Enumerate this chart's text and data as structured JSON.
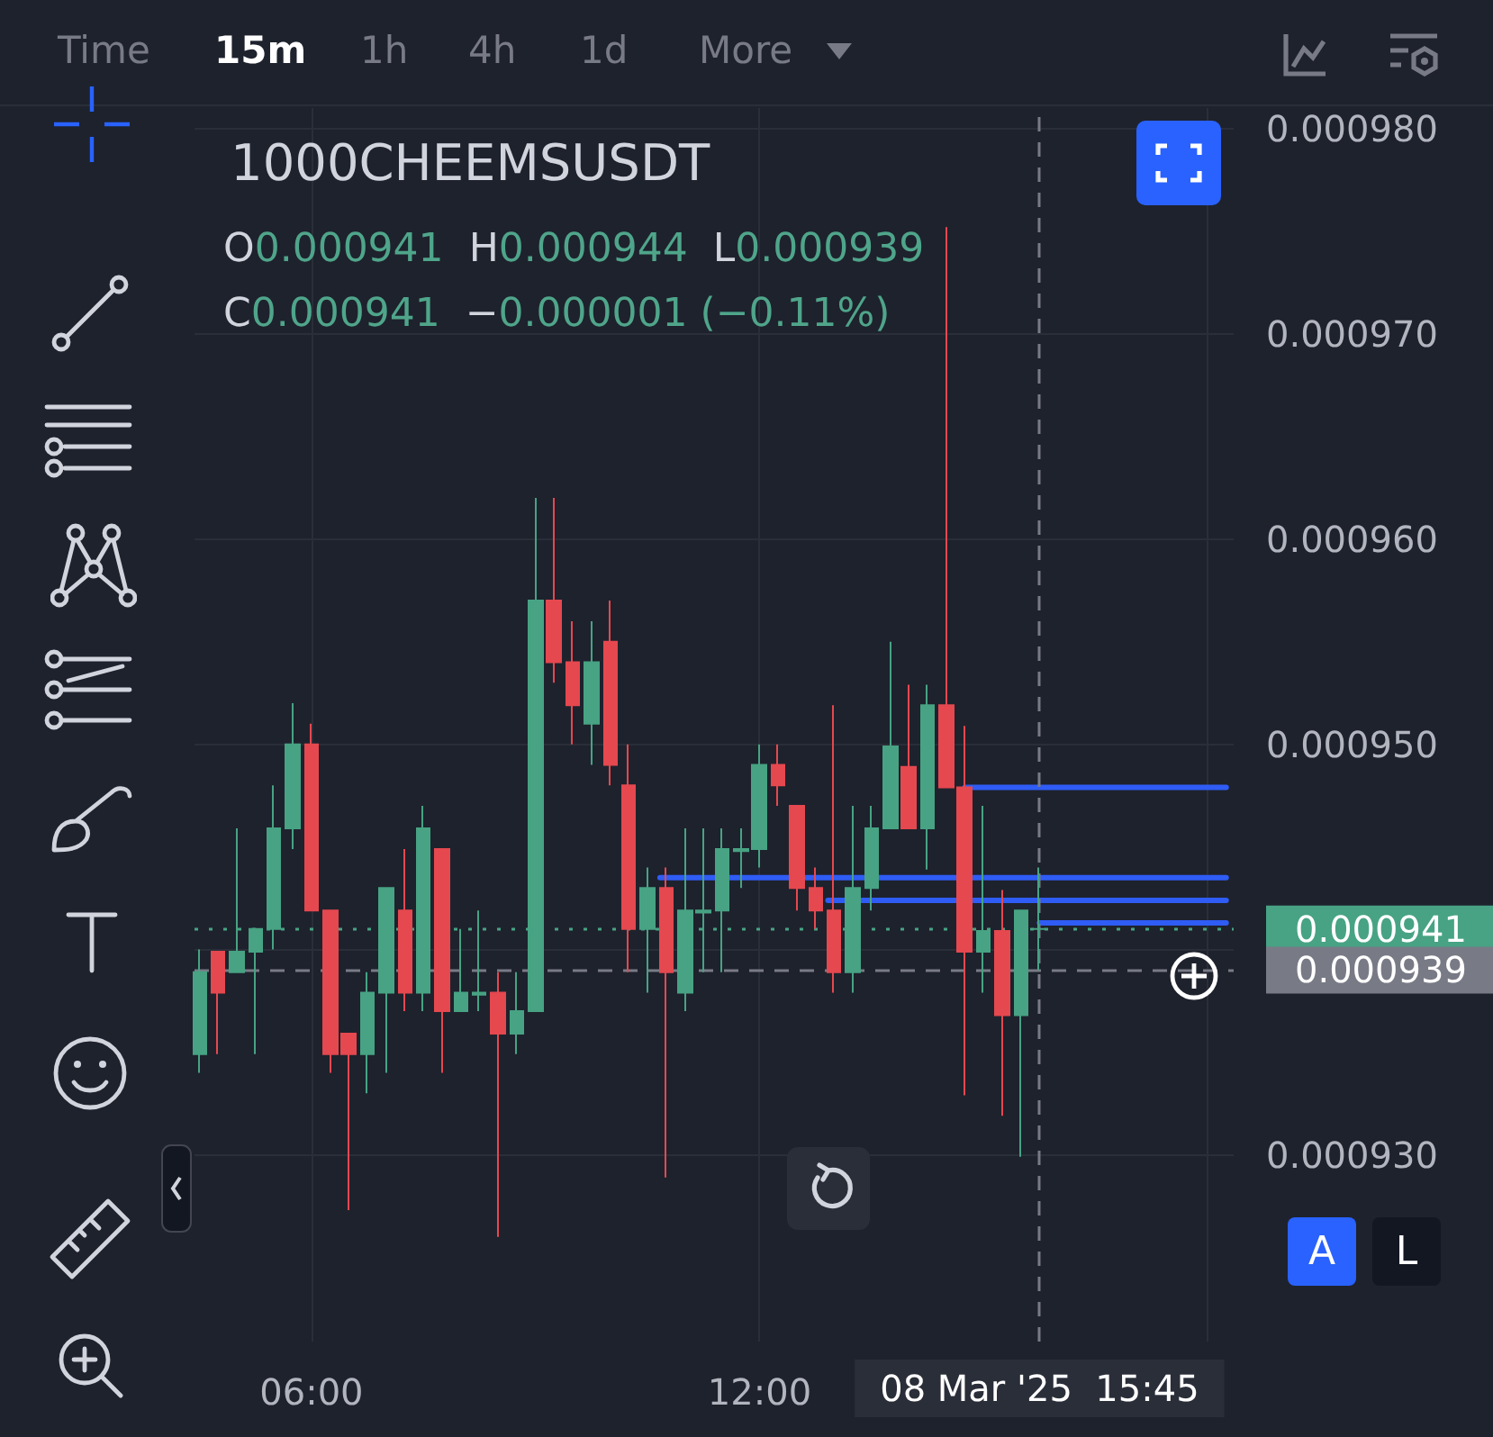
{
  "chart_data": {
    "type": "candlestick",
    "title": "1000CHEEMSUSDT",
    "annotations": [
      "Time",
      "15m",
      "1h",
      "4h",
      "1d",
      "More",
      "O0.000941",
      "H0.000944",
      "L0.000939",
      "C0.000941",
      "−0.000001 (−0.11%)",
      "A",
      "L"
    ],
    "x": [
      "2025-03-08T04:30",
      "2025-03-08T04:45",
      "2025-03-08T05:00",
      "2025-03-08T05:15",
      "2025-03-08T05:30",
      "2025-03-08T05:45",
      "2025-03-08T06:00",
      "2025-03-08T06:15",
      "2025-03-08T06:30",
      "2025-03-08T06:45",
      "2025-03-08T07:00",
      "2025-03-08T07:15",
      "2025-03-08T07:30",
      "2025-03-08T07:45",
      "2025-03-08T08:00",
      "2025-03-08T08:15",
      "2025-03-08T08:30",
      "2025-03-08T08:45",
      "2025-03-08T09:00",
      "2025-03-08T09:15",
      "2025-03-08T09:30",
      "2025-03-08T09:45",
      "2025-03-08T10:00",
      "2025-03-08T10:15",
      "2025-03-08T10:30",
      "2025-03-08T10:45",
      "2025-03-08T11:00",
      "2025-03-08T11:15",
      "2025-03-08T11:30",
      "2025-03-08T11:45",
      "2025-03-08T12:00",
      "2025-03-08T12:15",
      "2025-03-08T12:30",
      "2025-03-08T12:45",
      "2025-03-08T13:00",
      "2025-03-08T13:15",
      "2025-03-08T13:30",
      "2025-03-08T13:45",
      "2025-03-08T14:00",
      "2025-03-08T14:15",
      "2025-03-08T14:30",
      "2025-03-08T14:45",
      "2025-03-08T15:00",
      "2025-03-08T15:15",
      "2025-03-08T15:30",
      "2025-03-08T15:45"
    ],
    "ohlc": [
      [
        0.0009349,
        0.00094,
        0.000934,
        0.0009389
      ],
      [
        0.0009399,
        0.0009399,
        0.0009349,
        0.0009379
      ],
      [
        0.0009389,
        0.0009459,
        0.0009389,
        0.0009399
      ],
      [
        0.0009399,
        0.000941,
        0.0009349,
        0.000941
      ],
      [
        0.000941,
        0.000948,
        0.00094,
        0.0009459
      ],
      [
        0.0009459,
        0.000952,
        0.0009449,
        0.00095
      ],
      [
        0.00095,
        0.000951,
        0.0009419,
        0.0009419
      ],
      [
        0.0009419,
        0.0009419,
        0.000934,
        0.0009349
      ],
      [
        0.0009359,
        0.0009359,
        0.0009273,
        0.0009349
      ],
      [
        0.0009349,
        0.0009389,
        0.000933,
        0.0009379
      ],
      [
        0.0009379,
        0.000943,
        0.000934,
        0.000943
      ],
      [
        0.0009419,
        0.0009449,
        0.000937,
        0.0009379
      ],
      [
        0.0009379,
        0.000947,
        0.000937,
        0.0009459
      ],
      [
        0.0009449,
        0.0009449,
        0.000934,
        0.000937
      ],
      [
        0.000937,
        0.000941,
        0.000937,
        0.0009379
      ],
      [
        0.0009378,
        0.0009419,
        0.000937,
        0.0009379
      ],
      [
        0.0009379,
        0.0009389,
        0.000926,
        0.0009359
      ],
      [
        0.0009359,
        0.0009389,
        0.0009349,
        0.000937
      ],
      [
        0.000937,
        0.000962,
        0.000937,
        0.000957
      ],
      [
        0.000957,
        0.000962,
        0.000953,
        0.000954
      ],
      [
        0.000954,
        0.000956,
        0.00095,
        0.0009519
      ],
      [
        0.000951,
        0.000956,
        0.000949,
        0.000954
      ],
      [
        0.000955,
        0.000957,
        0.000948,
        0.000949
      ],
      [
        0.000948,
        0.00095,
        0.0009389,
        0.000941
      ],
      [
        0.000941,
        0.000944,
        0.0009379,
        0.000943
      ],
      [
        0.000943,
        0.000944,
        0.0009289,
        0.0009389
      ],
      [
        0.0009379,
        0.0009459,
        0.000937,
        0.0009419
      ],
      [
        0.0009418,
        0.0009459,
        0.0009389,
        0.0009419
      ],
      [
        0.0009419,
        0.0009459,
        0.0009389,
        0.0009449
      ],
      [
        0.0009448,
        0.0009459,
        0.000943,
        0.0009449
      ],
      [
        0.0009449,
        0.00095,
        0.000944,
        0.000949
      ],
      [
        0.000949,
        0.00095,
        0.000947,
        0.000948
      ],
      [
        0.000947,
        0.000947,
        0.0009419,
        0.000943
      ],
      [
        0.000943,
        0.000944,
        0.000941,
        0.0009419
      ],
      [
        0.0009419,
        0.0009519,
        0.0009379,
        0.0009389
      ],
      [
        0.0009389,
        0.000947,
        0.0009379,
        0.000943
      ],
      [
        0.000943,
        0.000947,
        0.0009419,
        0.0009459
      ],
      [
        0.0009459,
        0.000955,
        0.0009459,
        0.0009499
      ],
      [
        0.0009489,
        0.0009529,
        0.0009459,
        0.0009459
      ],
      [
        0.0009459,
        0.0009529,
        0.0009439,
        0.0009519
      ],
      [
        0.0009519,
        0.0009752,
        0.0009479,
        0.0009479
      ],
      [
        0.0009479,
        0.0009509,
        0.0009329,
        0.0009399
      ],
      [
        0.0009399,
        0.000947,
        0.0009379,
        0.0009409
      ],
      [
        0.0009409,
        0.0009429,
        0.0009319,
        0.0009368
      ],
      [
        0.0009368,
        0.0009419,
        0.0009299,
        0.0009419
      ],
      [
        0.000941,
        0.000944,
        0.000939,
        0.000941
      ]
    ],
    "colors": [
      "#47a383",
      "#e5484f",
      "#47a383",
      "#47a383",
      "#47a383",
      "#47a383",
      "#e5484f",
      "#e5484f",
      "#e5484f",
      "#47a383",
      "#47a383",
      "#e5484f",
      "#47a383",
      "#e5484f",
      "#47a383",
      "#47a383",
      "#e5484f",
      "#47a383",
      "#47a383",
      "#e5484f",
      "#e5484f",
      "#47a383",
      "#e5484f",
      "#e5484f",
      "#47a383",
      "#e5484f",
      "#47a383",
      "#47a383",
      "#47a383",
      "#47a383",
      "#47a383",
      "#e5484f",
      "#e5484f",
      "#e5484f",
      "#e5484f",
      "#47a383",
      "#47a383",
      "#47a383",
      "#e5484f",
      "#47a383",
      "#e5484f",
      "#e5484f",
      "#47a383",
      "#e5484f",
      "#47a383",
      "#47a383"
    ],
    "series": [
      {
        "type": "line",
        "color": "#2f5cf5",
        "x": [
          "2025-03-08T10:40",
          "2025-03-08T18:15"
        ],
        "values": [
          0.0009435,
          0.0009435
        ]
      },
      {
        "type": "line",
        "color": "#2f5cf5",
        "x": [
          "2025-03-08T12:55",
          "2025-03-08T18:15"
        ],
        "values": [
          0.0009424,
          0.0009424
        ]
      },
      {
        "type": "line",
        "color": "#2f5cf5",
        "x": [
          "2025-03-08T14:45",
          "2025-03-08T18:15"
        ],
        "values": [
          0.0009479,
          0.0009479
        ]
      },
      {
        "type": "line",
        "color": "#2f5cf5",
        "x": [
          "2025-03-08T15:45",
          "2025-03-08T18:15"
        ],
        "values": [
          0.0009413,
          0.0009413
        ]
      }
    ],
    "xlim": [
      "2025-03-08T04:26",
      "2025-03-08T18:21"
    ],
    "xticks": [
      {
        "value": "2025-03-08T06:00",
        "label": "06:00"
      },
      {
        "value": "2025-03-08T12:00",
        "label": "12:00"
      },
      {
        "value": "2025-03-08T18:00",
        "label": null
      }
    ],
    "ylim": [
      0.0009209,
      0.000981
    ],
    "yticks": [
      {
        "value": 0.00093,
        "label": "0.000930"
      },
      {
        "value": 0.00094,
        "label": null
      },
      {
        "value": 0.00095,
        "label": "0.000950"
      },
      {
        "value": 0.00096,
        "label": "0.000960"
      },
      {
        "value": 0.00097,
        "label": "0.000970"
      },
      {
        "value": 0.00098,
        "label": "0.000980"
      }
    ],
    "grid": true,
    "ref_lines": [
      {
        "axis": "y",
        "value": 0.000941,
        "label": "0.000941",
        "color": "#47a383",
        "line_style": "dotted"
      },
      {
        "axis": "y",
        "value": 0.000939,
        "label": "0.000939",
        "color": "#787b86",
        "line_style": "dashed"
      },
      {
        "axis": "x",
        "value": "2025-03-08T15:45",
        "label": "08 Mar '25  15:45",
        "color": "#787b86",
        "line_style": "dashed"
      }
    ]
  }
}
